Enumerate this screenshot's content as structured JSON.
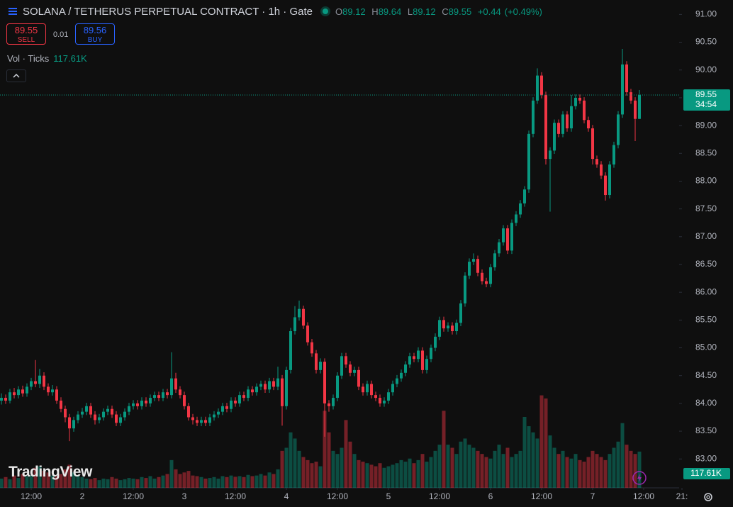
{
  "chart_data": {
    "type": "candlestick",
    "title": "SOLANA / TETHERUS PERPETUAL CONTRACT · 1h · Gate",
    "ohlc_labels": [
      "O",
      "H",
      "L",
      "C"
    ],
    "change": {
      "value": 0.44,
      "label": "+0.44"
    },
    "change_percent": {
      "value": 0.49,
      "label": "(+0.49%)"
    },
    "sell": {
      "price": 89.55,
      "label": "SELL"
    },
    "spread": 0.01,
    "buy": {
      "price": 89.56,
      "label": "BUY"
    },
    "countdown": "34:54",
    "colors": {
      "up": "#089981",
      "down": "#f23645"
    },
    "grid": false,
    "ylim": [
      82.48,
      91.26
    ],
    "yticks": [
      {
        "value": 83,
        "label": "83.00"
      },
      {
        "value": 83.5,
        "label": "83.50"
      },
      {
        "value": 84,
        "label": "84.00"
      },
      {
        "value": 84.5,
        "label": "84.50"
      },
      {
        "value": 85,
        "label": "85.00"
      },
      {
        "value": 85.5,
        "label": "85.50"
      },
      {
        "value": 86,
        "label": "86.00"
      },
      {
        "value": 86.5,
        "label": "86.50"
      },
      {
        "value": 87,
        "label": "87.00"
      },
      {
        "value": 87.5,
        "label": "87.50"
      },
      {
        "value": 88,
        "label": "88.00"
      },
      {
        "value": 88.5,
        "label": "88.50"
      },
      {
        "value": 89,
        "label": "89.00"
      },
      {
        "value": 89.5,
        "label": "89.50"
      },
      {
        "value": 90,
        "label": "90.00"
      },
      {
        "value": 90.5,
        "label": "90.50"
      },
      {
        "value": 91,
        "label": "91.00"
      }
    ],
    "xticks": [
      {
        "value": 7,
        "label": "12:00"
      },
      {
        "value": 19,
        "label": "2"
      },
      {
        "value": 31,
        "label": "12:00"
      },
      {
        "value": 43,
        "label": "3"
      },
      {
        "value": 55,
        "label": "12:00"
      },
      {
        "value": 67,
        "label": "4"
      },
      {
        "value": 79,
        "label": "12:00"
      },
      {
        "value": 91,
        "label": "5"
      },
      {
        "value": 103,
        "label": "12:00"
      },
      {
        "value": 115,
        "label": "6"
      },
      {
        "value": 127,
        "label": "12:00"
      },
      {
        "value": 139,
        "label": "7"
      },
      {
        "value": 151,
        "label": "12:00"
      },
      {
        "value": 160,
        "label": "21:"
      }
    ],
    "candles": [
      [
        84.05,
        84.18,
        83.98,
        84.1
      ],
      [
        84.1,
        84.16,
        83.99,
        84.05
      ],
      [
        84.05,
        84.26,
        84.0,
        84.2
      ],
      [
        84.2,
        84.28,
        84.09,
        84.15
      ],
      [
        84.15,
        84.31,
        84.09,
        84.25
      ],
      [
        84.25,
        84.32,
        84.12,
        84.18
      ],
      [
        84.18,
        84.36,
        84.12,
        84.3
      ],
      [
        84.3,
        84.46,
        84.24,
        84.4
      ],
      [
        84.4,
        84.78,
        84.29,
        84.35
      ],
      [
        84.35,
        84.62,
        84.28,
        84.5
      ],
      [
        84.5,
        84.56,
        84.24,
        84.3
      ],
      [
        84.3,
        84.36,
        84.14,
        84.2
      ],
      [
        84.2,
        84.33,
        84.14,
        84.25
      ],
      [
        84.25,
        84.31,
        83.99,
        84.05
      ],
      [
        84.05,
        84.11,
        83.84,
        83.9
      ],
      [
        83.9,
        83.96,
        83.66,
        83.75
      ],
      [
        83.75,
        83.81,
        83.32,
        83.55
      ],
      [
        83.55,
        83.76,
        83.49,
        83.7
      ],
      [
        83.7,
        83.86,
        83.64,
        83.8
      ],
      [
        83.8,
        83.92,
        83.74,
        83.85
      ],
      [
        83.85,
        84.01,
        83.79,
        83.95
      ],
      [
        83.95,
        84.01,
        83.74,
        83.8
      ],
      [
        83.8,
        83.86,
        83.62,
        83.7
      ],
      [
        83.7,
        83.81,
        83.64,
        83.75
      ],
      [
        83.75,
        83.91,
        83.69,
        83.85
      ],
      [
        83.85,
        83.96,
        83.79,
        83.9
      ],
      [
        83.9,
        83.96,
        83.74,
        83.8
      ],
      [
        83.8,
        83.86,
        83.59,
        83.65
      ],
      [
        83.65,
        83.81,
        83.59,
        83.75
      ],
      [
        83.75,
        83.91,
        83.69,
        83.85
      ],
      [
        83.85,
        84.01,
        83.79,
        83.95
      ],
      [
        83.95,
        84.06,
        83.89,
        84.0
      ],
      [
        84.0,
        84.06,
        83.89,
        83.95
      ],
      [
        83.95,
        84.11,
        83.89,
        84.05
      ],
      [
        84.05,
        84.11,
        83.94,
        84.0
      ],
      [
        84.0,
        84.16,
        83.94,
        84.1
      ],
      [
        84.1,
        84.21,
        84.04,
        84.15
      ],
      [
        84.15,
        84.21,
        84.04,
        84.1
      ],
      [
        84.1,
        84.26,
        84.04,
        84.2
      ],
      [
        84.2,
        84.26,
        84.09,
        84.15
      ],
      [
        84.15,
        84.92,
        84.09,
        84.45
      ],
      [
        84.45,
        84.55,
        84.19,
        84.25
      ],
      [
        84.25,
        84.31,
        84.09,
        84.15
      ],
      [
        84.15,
        84.21,
        83.89,
        83.95
      ],
      [
        83.95,
        84.01,
        83.69,
        83.75
      ],
      [
        83.75,
        83.81,
        83.62,
        83.7
      ],
      [
        83.7,
        83.76,
        83.59,
        83.65
      ],
      [
        83.65,
        83.76,
        83.59,
        83.7
      ],
      [
        83.7,
        83.76,
        83.59,
        83.65
      ],
      [
        83.65,
        83.81,
        83.59,
        83.75
      ],
      [
        83.75,
        83.86,
        83.69,
        83.8
      ],
      [
        83.8,
        83.91,
        83.74,
        83.85
      ],
      [
        83.85,
        84.01,
        83.79,
        83.95
      ],
      [
        83.95,
        84.01,
        83.84,
        83.9
      ],
      [
        83.9,
        84.11,
        83.84,
        84.05
      ],
      [
        84.05,
        84.11,
        83.94,
        84.0
      ],
      [
        84.0,
        84.21,
        83.94,
        84.15
      ],
      [
        84.15,
        84.21,
        84.04,
        84.1
      ],
      [
        84.1,
        84.31,
        84.04,
        84.25
      ],
      [
        84.25,
        84.31,
        84.14,
        84.2
      ],
      [
        84.2,
        84.36,
        84.14,
        84.3
      ],
      [
        84.3,
        84.41,
        84.24,
        84.35
      ],
      [
        84.35,
        84.41,
        84.19,
        84.25
      ],
      [
        84.25,
        84.46,
        84.19,
        84.4
      ],
      [
        84.4,
        84.46,
        84.24,
        84.3
      ],
      [
        84.3,
        84.66,
        84.24,
        84.45
      ],
      [
        84.45,
        84.51,
        83.6,
        83.95
      ],
      [
        83.95,
        84.66,
        83.89,
        84.6
      ],
      [
        84.6,
        85.36,
        84.54,
        85.3
      ],
      [
        85.3,
        85.75,
        85.24,
        85.55
      ],
      [
        85.55,
        85.85,
        85.49,
        85.7
      ],
      [
        85.7,
        85.76,
        85.34,
        85.4
      ],
      [
        85.4,
        85.46,
        85.04,
        85.1
      ],
      [
        85.1,
        85.16,
        84.84,
        84.9
      ],
      [
        84.9,
        84.96,
        84.54,
        84.6
      ],
      [
        84.6,
        84.81,
        84.54,
        84.75
      ],
      [
        84.75,
        84.81,
        83.4,
        84.0
      ],
      [
        84.0,
        84.06,
        83.85,
        83.95
      ],
      [
        83.95,
        84.16,
        83.89,
        84.1
      ],
      [
        84.1,
        84.56,
        84.04,
        84.5
      ],
      [
        84.5,
        84.91,
        84.44,
        84.85
      ],
      [
        84.85,
        84.91,
        84.64,
        84.7
      ],
      [
        84.7,
        84.76,
        84.49,
        84.55
      ],
      [
        84.55,
        84.66,
        84.49,
        84.6
      ],
      [
        84.6,
        84.66,
        84.24,
        84.3
      ],
      [
        84.3,
        84.36,
        84.14,
        84.2
      ],
      [
        84.2,
        84.41,
        84.14,
        84.35
      ],
      [
        84.35,
        84.41,
        84.09,
        84.15
      ],
      [
        84.15,
        84.21,
        84.04,
        84.1
      ],
      [
        84.1,
        84.16,
        83.94,
        84.0
      ],
      [
        84.0,
        84.11,
        83.94,
        84.05
      ],
      [
        84.05,
        84.26,
        83.99,
        84.2
      ],
      [
        84.2,
        84.41,
        84.14,
        84.35
      ],
      [
        84.35,
        84.51,
        84.29,
        84.45
      ],
      [
        84.45,
        84.61,
        84.39,
        84.55
      ],
      [
        84.55,
        84.76,
        84.49,
        84.7
      ],
      [
        84.7,
        84.91,
        84.64,
        84.85
      ],
      [
        84.85,
        84.91,
        84.74,
        84.8
      ],
      [
        84.8,
        85.01,
        84.74,
        84.95
      ],
      [
        84.95,
        85.01,
        84.54,
        84.6
      ],
      [
        84.6,
        84.86,
        84.54,
        84.8
      ],
      [
        84.8,
        85.06,
        84.74,
        85.0
      ],
      [
        85.0,
        85.26,
        84.94,
        85.2
      ],
      [
        85.2,
        85.56,
        85.14,
        85.5
      ],
      [
        85.5,
        85.56,
        85.29,
        85.35
      ],
      [
        85.35,
        85.46,
        85.29,
        85.4
      ],
      [
        85.4,
        85.46,
        85.24,
        85.3
      ],
      [
        85.3,
        85.51,
        85.24,
        85.45
      ],
      [
        85.45,
        85.86,
        85.39,
        85.8
      ],
      [
        85.8,
        86.36,
        85.74,
        86.3
      ],
      [
        86.3,
        86.61,
        86.24,
        86.55
      ],
      [
        86.55,
        86.7,
        86.49,
        86.6
      ],
      [
        86.6,
        86.66,
        86.29,
        86.35
      ],
      [
        86.35,
        86.41,
        86.14,
        86.2
      ],
      [
        86.2,
        86.26,
        86.09,
        86.15
      ],
      [
        86.15,
        86.51,
        86.09,
        86.45
      ],
      [
        86.45,
        86.76,
        86.39,
        86.7
      ],
      [
        86.7,
        86.96,
        86.64,
        86.9
      ],
      [
        86.9,
        87.21,
        86.84,
        87.15
      ],
      [
        87.15,
        87.21,
        86.69,
        86.75
      ],
      [
        86.75,
        87.31,
        86.69,
        87.25
      ],
      [
        87.25,
        87.46,
        87.19,
        87.4
      ],
      [
        87.4,
        87.66,
        87.34,
        87.6
      ],
      [
        87.6,
        87.91,
        87.54,
        87.85
      ],
      [
        87.85,
        88.91,
        87.79,
        88.85
      ],
      [
        88.85,
        89.51,
        88.79,
        89.45
      ],
      [
        89.45,
        90.03,
        89.39,
        89.9
      ],
      [
        89.9,
        89.96,
        89.49,
        89.55
      ],
      [
        89.55,
        89.61,
        88.3,
        88.4
      ],
      [
        88.4,
        88.61,
        87.45,
        88.55
      ],
      [
        88.55,
        89.11,
        88.49,
        89.05
      ],
      [
        89.05,
        89.11,
        88.79,
        88.85
      ],
      [
        88.85,
        89.26,
        88.79,
        89.2
      ],
      [
        89.2,
        89.26,
        88.89,
        88.95
      ],
      [
        88.95,
        89.55,
        88.89,
        89.35
      ],
      [
        89.35,
        89.56,
        89.29,
        89.5
      ],
      [
        89.5,
        89.56,
        89.39,
        89.45
      ],
      [
        89.45,
        89.51,
        89.04,
        89.1
      ],
      [
        89.1,
        89.16,
        88.89,
        88.95
      ],
      [
        88.95,
        89.01,
        88.3,
        88.4
      ],
      [
        88.4,
        88.46,
        88.24,
        88.3
      ],
      [
        88.3,
        88.36,
        88.04,
        88.1
      ],
      [
        88.1,
        88.16,
        87.65,
        87.75
      ],
      [
        87.75,
        88.36,
        87.69,
        88.3
      ],
      [
        88.3,
        88.71,
        88.24,
        88.65
      ],
      [
        88.65,
        89.26,
        88.59,
        89.2
      ],
      [
        89.2,
        90.38,
        89.14,
        90.1
      ],
      [
        90.1,
        90.16,
        89.54,
        89.6
      ],
      [
        89.6,
        89.66,
        89.39,
        89.45
      ],
      [
        89.45,
        89.51,
        88.72,
        89.12
      ],
      [
        89.12,
        89.64,
        89.12,
        89.55
      ]
    ],
    "volume": {
      "name": "Vol · Ticks",
      "last_label": "117.61K",
      "ylim": [
        0,
        690000
      ],
      "values": [
        30000,
        35000,
        28000,
        40000,
        32000,
        45000,
        38000,
        42000,
        65000,
        70000,
        55000,
        50000,
        40000,
        38000,
        45000,
        60000,
        75000,
        50000,
        40000,
        35000,
        30000,
        28000,
        32000,
        25000,
        30000,
        28000,
        35000,
        30000,
        25000,
        28000,
        32000,
        30000,
        28000,
        35000,
        32000,
        38000,
        30000,
        35000,
        40000,
        45000,
        90000,
        60000,
        45000,
        50000,
        55000,
        40000,
        38000,
        35000,
        30000,
        32000,
        35000,
        30000,
        38000,
        35000,
        40000,
        36000,
        38000,
        35000,
        42000,
        38000,
        40000,
        45000,
        40000,
        50000,
        45000,
        60000,
        120000,
        130000,
        180000,
        160000,
        120000,
        100000,
        90000,
        80000,
        85000,
        70000,
        250000,
        180000,
        120000,
        110000,
        130000,
        220000,
        150000,
        110000,
        90000,
        85000,
        80000,
        75000,
        70000,
        80000,
        65000,
        70000,
        75000,
        80000,
        90000,
        85000,
        95000,
        80000,
        90000,
        110000,
        85000,
        100000,
        120000,
        140000,
        250000,
        140000,
        130000,
        110000,
        150000,
        160000,
        140000,
        130000,
        120000,
        110000,
        100000,
        95000,
        120000,
        140000,
        110000,
        130000,
        100000,
        110000,
        120000,
        230000,
        200000,
        180000,
        160000,
        300000,
        290000,
        170000,
        130000,
        110000,
        120000,
        100000,
        95000,
        110000,
        90000,
        85000,
        100000,
        120000,
        110000,
        100000,
        90000,
        110000,
        130000,
        150000,
        210000,
        140000,
        120000,
        110000,
        117610
      ]
    }
  },
  "logo": "TradingView"
}
